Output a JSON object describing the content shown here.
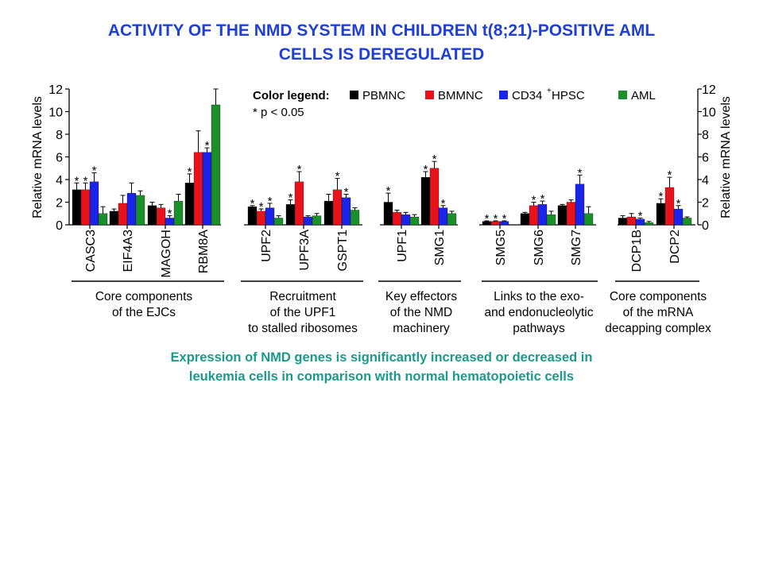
{
  "title": {
    "line1": "ACTIVITY OF THE NMD SYSTEM IN CHILDREN t(8;21)-POSITIVE AML",
    "line2": "CELLS IS DEREGULATED"
  },
  "caption": {
    "line1": "Expression of NMD genes is significantly increased or decreased in",
    "line2": "leukemia cells in comparison with normal hematopoietic cells"
  },
  "colors": {
    "PBMNC": "#000000",
    "BMMNC": "#e8121b",
    "CD34": "#1a24e8",
    "AML": "#1a8f2a",
    "title": "#1f3fd6",
    "caption": "#1a9a8a"
  },
  "chart_data": {
    "type": "bar",
    "ylabel": "Relative mRNA levels",
    "ylim": [
      0,
      12
    ],
    "yticks": [
      "0",
      "2",
      "4",
      "6",
      "8",
      "10",
      "12"
    ],
    "legend": {
      "title": "Color legend:",
      "note": "* p < 0.05",
      "entries": [
        {
          "label": "PBMNC",
          "color_key": "PBMNC"
        },
        {
          "label": "BMMNC",
          "color_key": "BMMNC"
        },
        {
          "label": "CD34",
          "sup": "+",
          "suffix": " HPSC",
          "color_key": "CD34"
        },
        {
          "label": "AML",
          "color_key": "AML"
        }
      ]
    },
    "series": [
      "PBMNC",
      "BMMNC",
      "CD34+ HPSC",
      "AML"
    ],
    "groups": [
      {
        "label": [
          "Core components",
          "of the EJCs"
        ],
        "genes": [
          {
            "name": "CASC3",
            "values": [
              3.1,
              3.1,
              3.8,
              1.0
            ],
            "errors": [
              0.6,
              0.6,
              0.8,
              0.6
            ],
            "stars": [
              1,
              1,
              1,
              0
            ]
          },
          {
            "name": "EIF4A3",
            "values": [
              1.2,
              1.9,
              2.8,
              2.6
            ],
            "errors": [
              0.2,
              0.7,
              0.9,
              0.4
            ],
            "stars": [
              0,
              0,
              0,
              0
            ]
          },
          {
            "name": "MAGOH",
            "values": [
              1.7,
              1.5,
              0.6,
              2.1
            ],
            "errors": [
              0.3,
              0.3,
              0.2,
              0.6
            ],
            "stars": [
              0,
              0,
              1,
              0
            ]
          },
          {
            "name": "RBM8A",
            "values": [
              3.7,
              6.4,
              6.4,
              10.6
            ],
            "errors": [
              0.8,
              1.9,
              0.4,
              1.4
            ],
            "stars": [
              1,
              0,
              1,
              0
            ]
          }
        ]
      },
      {
        "label": [
          "Recruitment",
          "of the UPF1",
          "to stalled ribosomes"
        ],
        "genes": [
          {
            "name": "UPF2",
            "values": [
              1.6,
              1.2,
              1.5,
              0.6
            ],
            "errors": [
              0.1,
              0.2,
              0.4,
              0.2
            ],
            "stars": [
              1,
              1,
              1,
              0
            ]
          },
          {
            "name": "UPF3A",
            "values": [
              1.8,
              3.8,
              0.7,
              0.8
            ],
            "errors": [
              0.4,
              0.9,
              0.1,
              0.2
            ],
            "stars": [
              1,
              1,
              0,
              0
            ]
          },
          {
            "name": "GSPT1",
            "values": [
              2.1,
              3.1,
              2.4,
              1.3
            ],
            "errors": [
              0.6,
              1.0,
              0.3,
              0.2
            ],
            "stars": [
              0,
              1,
              1,
              0
            ]
          }
        ]
      },
      {
        "label": [
          "Key effectors",
          "of the NMD",
          "machinery"
        ],
        "genes": [
          {
            "name": "UPF1",
            "values": [
              2.0,
              1.1,
              0.9,
              0.7
            ],
            "errors": [
              0.8,
              0.2,
              0.2,
              0.2
            ],
            "stars": [
              1,
              0,
              0,
              0
            ]
          },
          {
            "name": "SMG1",
            "values": [
              4.2,
              5.0,
              1.5,
              1.0
            ],
            "errors": [
              0.5,
              0.6,
              0.2,
              0.2
            ],
            "stars": [
              1,
              1,
              1,
              0
            ]
          }
        ]
      },
      {
        "label": [
          "Links to the exo-",
          "and endonucleolytic",
          "pathways"
        ],
        "genes": [
          {
            "name": "SMG5",
            "values": [
              0.3,
              0.3,
              0.3,
              0.0
            ],
            "errors": [
              0.05,
              0.05,
              0.05,
              0.0
            ],
            "stars": [
              1,
              1,
              1,
              0
            ]
          },
          {
            "name": "SMG6",
            "values": [
              1.0,
              1.7,
              1.8,
              0.9
            ],
            "errors": [
              0.1,
              0.3,
              0.3,
              0.3
            ],
            "stars": [
              0,
              1,
              1,
              0
            ]
          },
          {
            "name": "SMG7",
            "values": [
              1.7,
              2.0,
              3.6,
              1.0
            ],
            "errors": [
              0.1,
              0.2,
              0.8,
              0.6
            ],
            "stars": [
              0,
              0,
              1,
              0
            ]
          }
        ]
      },
      {
        "label": [
          "Core components",
          "of the mRNA",
          "decapping complex"
        ],
        "genes": [
          {
            "name": "DCP1B",
            "values": [
              0.6,
              0.7,
              0.5,
              0.2
            ],
            "errors": [
              0.2,
              0.3,
              0.1,
              0.1
            ],
            "stars": [
              0,
              0,
              1,
              0
            ]
          },
          {
            "name": "DCP2",
            "values": [
              1.9,
              3.3,
              1.4,
              0.6
            ],
            "errors": [
              0.4,
              0.9,
              0.3,
              0.1
            ],
            "stars": [
              1,
              1,
              1,
              0
            ]
          }
        ]
      }
    ]
  }
}
